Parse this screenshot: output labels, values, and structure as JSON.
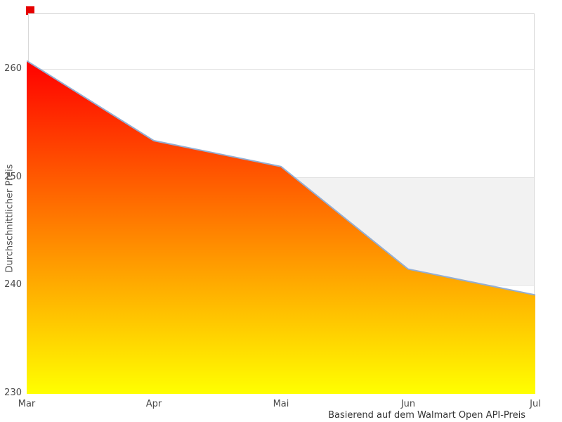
{
  "chart": {
    "y_axis_title": "Durchschnittlicher Preis",
    "caption": "Basierend auf dem Walmart Open API-Preis",
    "legend_swatch_color": "#e60000"
  },
  "chart_data": {
    "type": "area",
    "categories": [
      "Mar",
      "Apr",
      "Mai",
      "Jun",
      "Jul"
    ],
    "series": [
      {
        "name": "Durchschnittlicher Preis",
        "values": [
          260.7,
          253.3,
          250.9,
          241.4,
          239.0
        ]
      }
    ],
    "title": "",
    "xlabel": "",
    "ylabel": "Durchschnittlicher Preis",
    "caption": "Basierend auf dem Walmart Open API-Preis",
    "ylim": [
      230,
      265
    ],
    "yticks": [
      230,
      240,
      250,
      260
    ],
    "grid": true,
    "grid_color": "#e2e2e2",
    "highlight_band": {
      "from": 240,
      "to": 250,
      "color": "#f2f2f2"
    },
    "line_color": "#93aed3",
    "fill_gradient": [
      "#ff0000",
      "#ffff00"
    ],
    "legend_position": "top-left"
  }
}
